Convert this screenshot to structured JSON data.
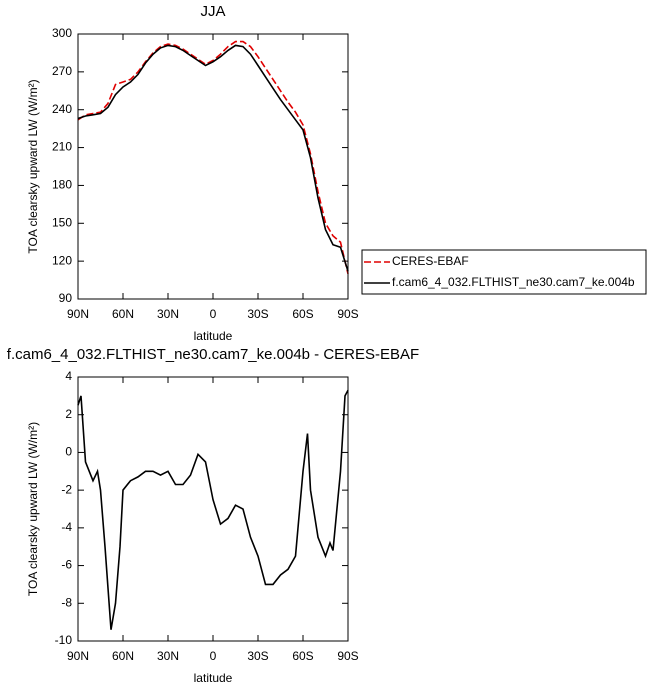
{
  "chart_data": [
    {
      "type": "line",
      "title": "JJA",
      "xlabel": "latitude",
      "ylabel": "TOA clearsky upward LW (W/m²)",
      "x": [
        90,
        85,
        80,
        75,
        70,
        65,
        60,
        55,
        50,
        45,
        40,
        35,
        30,
        25,
        20,
        15,
        10,
        5,
        0,
        -5,
        -10,
        -15,
        -20,
        -25,
        -30,
        -35,
        -40,
        -45,
        -50,
        -55,
        -60,
        -65,
        -70,
        -75,
        -80,
        -85,
        -90
      ],
      "series": [
        {
          "name": "CERES-EBAF",
          "color": "#e00000",
          "linestyle": "dashed",
          "values": [
            232,
            236,
            237,
            238,
            245,
            260,
            262,
            264,
            270,
            278,
            285,
            290,
            292,
            291,
            288,
            284,
            280,
            276,
            279,
            284,
            290,
            294,
            294,
            290,
            282,
            273,
            264,
            255,
            246,
            238,
            228,
            205,
            175,
            150,
            140,
            135,
            110
          ]
        },
        {
          "name": "f.cam6_4_032.FLTHIST_ne30.cam7_ke.004b",
          "color": "#000000",
          "linestyle": "solid",
          "values": [
            233,
            235,
            236,
            237,
            242,
            252,
            258,
            262,
            268,
            277,
            284,
            289,
            291,
            290,
            287,
            283,
            279,
            275,
            278,
            282,
            287,
            291,
            290,
            284,
            275,
            266,
            257,
            248,
            240,
            232,
            224,
            202,
            170,
            145,
            133,
            131,
            112
          ]
        }
      ],
      "xlim": [
        90,
        -90
      ],
      "xticks": [
        {
          "value": 90,
          "label": "90N"
        },
        {
          "value": 60,
          "label": "60N"
        },
        {
          "value": 30,
          "label": "30N"
        },
        0,
        {
          "value": -30,
          "label": "30S"
        },
        {
          "value": -60,
          "label": "60S"
        },
        {
          "value": -90,
          "label": "90S"
        }
      ],
      "ylim": [
        90,
        300
      ],
      "yticks": [
        90,
        120,
        150,
        180,
        210,
        240,
        270,
        300
      ],
      "legend": "outside right bottom"
    },
    {
      "type": "line",
      "title": "f.cam6_4_032.FLTHIST_ne30.cam7_ke.004b - CERES-EBAF",
      "xlabel": "latitude",
      "ylabel": "TOA clearsky upward LW (W/m²)",
      "x": [
        90,
        88,
        85,
        80,
        77,
        75,
        72,
        68,
        65,
        62,
        60,
        55,
        50,
        45,
        40,
        35,
        30,
        25,
        20,
        15,
        10,
        5,
        0,
        -5,
        -10,
        -15,
        -20,
        -25,
        -30,
        -35,
        -40,
        -45,
        -50,
        -55,
        -60,
        -63,
        -65,
        -70,
        -75,
        -78,
        -80,
        -85,
        -88,
        -90
      ],
      "series": [
        {
          "color": "#000000",
          "linestyle": "solid",
          "values": [
            2.5,
            3,
            -0.5,
            -1.5,
            -1,
            -2,
            -5,
            -9.4,
            -8,
            -5,
            -2,
            -1.5,
            -1.3,
            -1,
            -1,
            -1.2,
            -1,
            -1.7,
            -1.7,
            -1.2,
            -0.1,
            -0.5,
            -2.5,
            -3.8,
            -3.5,
            -2.8,
            -3,
            -4.5,
            -5.5,
            -7,
            -7,
            -6.5,
            -6.2,
            -5.5,
            -1,
            1,
            -2,
            -4.5,
            -5.5,
            -4.8,
            -5.2,
            -1,
            3,
            3.3
          ]
        }
      ],
      "xlim": [
        90,
        -90
      ],
      "xticks": [
        {
          "value": 90,
          "label": "90N"
        },
        {
          "value": 60,
          "label": "60N"
        },
        {
          "value": 30,
          "label": "30N"
        },
        0,
        {
          "value": -30,
          "label": "30S"
        },
        {
          "value": -60,
          "label": "60S"
        },
        {
          "value": -90,
          "label": "90S"
        }
      ],
      "ylim": [
        -10,
        4
      ],
      "yticks": [
        -10,
        -8,
        -6,
        -4,
        -2,
        0,
        2,
        4
      ]
    }
  ]
}
